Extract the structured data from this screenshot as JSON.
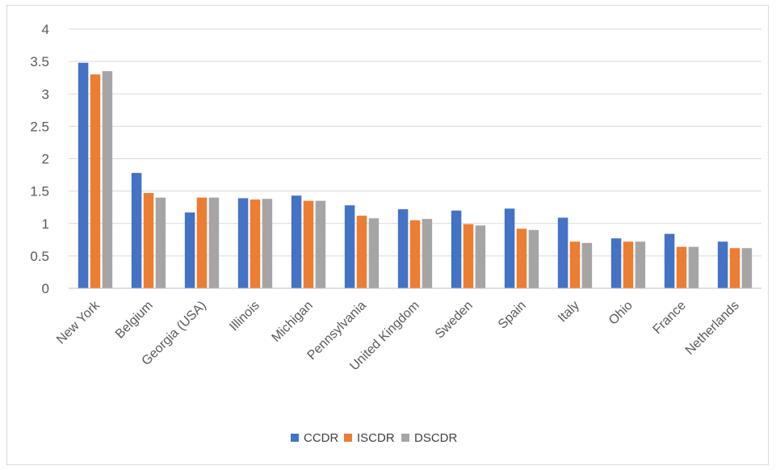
{
  "chart_data": {
    "type": "bar",
    "title": "",
    "xlabel": "",
    "ylabel": "",
    "categories": [
      "New York",
      "Belgium",
      "Georgia (USA)",
      "Illinois",
      "Michigan",
      "Pennsylvania",
      "United Kingdom",
      "Sweden",
      "Spain",
      "Italy",
      "Ohio",
      "France",
      "Netherlands"
    ],
    "series": [
      {
        "name": "CCDR",
        "color": "#4472C4",
        "values": [
          3.48,
          1.78,
          1.17,
          1.39,
          1.43,
          1.28,
          1.22,
          1.2,
          1.23,
          1.09,
          0.77,
          0.84,
          0.72
        ]
      },
      {
        "name": "ISCDR",
        "color": "#ED7D31",
        "values": [
          3.3,
          1.47,
          1.4,
          1.37,
          1.35,
          1.12,
          1.05,
          0.99,
          0.92,
          0.72,
          0.72,
          0.64,
          0.62
        ]
      },
      {
        "name": "DSCDR",
        "color": "#A5A5A5",
        "values": [
          3.35,
          1.4,
          1.4,
          1.38,
          1.35,
          1.08,
          1.07,
          0.97,
          0.9,
          0.7,
          0.72,
          0.64,
          0.62
        ]
      }
    ],
    "ylim": [
      0,
      4
    ],
    "yticks": [
      "0",
      "0.5",
      "1",
      "1.5",
      "2",
      "2.5",
      "3",
      "3.5",
      "4"
    ],
    "grid": true,
    "legend_position": "bottom"
  }
}
